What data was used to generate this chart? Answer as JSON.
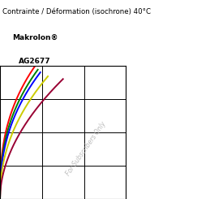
{
  "title_line1": "Contrainte / Déformation (isochrone) 40°C",
  "title_line2": "Makrolon®",
  "title_line3": "AG2677",
  "watermark": "For Subscribers Only",
  "background_color": "#ffffff",
  "curve_params": [
    {
      "color": "#ff0000",
      "x_max": 0.28,
      "y_max": 1.0,
      "power": 0.38
    },
    {
      "color": "#008000",
      "x_max": 0.3,
      "y_max": 0.97,
      "power": 0.4
    },
    {
      "color": "#0000ff",
      "x_max": 0.32,
      "y_max": 0.95,
      "power": 0.42
    },
    {
      "color": "#cccc00",
      "x_max": 0.38,
      "y_max": 0.92,
      "power": 0.46
    },
    {
      "color": "#990033",
      "x_max": 0.5,
      "y_max": 0.9,
      "power": 0.52
    }
  ],
  "xlim": [
    0,
    1.0
  ],
  "ylim": [
    0,
    1.0
  ],
  "xticks": [
    0,
    0.333,
    0.667,
    1.0
  ],
  "yticks": [
    0,
    0.25,
    0.5,
    0.75,
    1.0
  ]
}
